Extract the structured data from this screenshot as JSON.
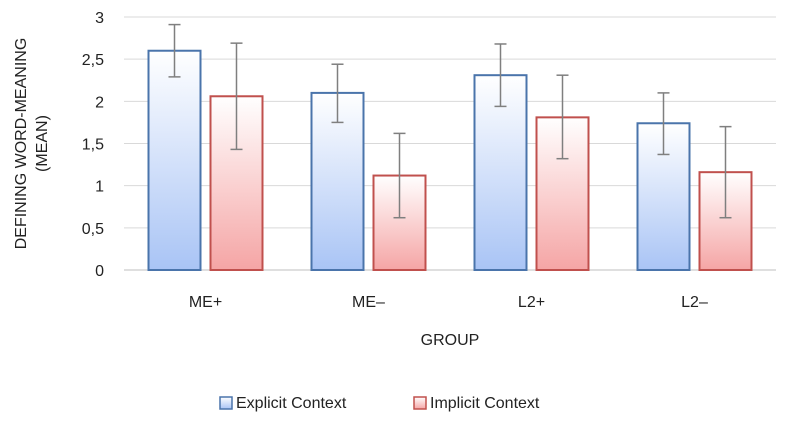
{
  "chart_data": {
    "type": "bar",
    "categories": [
      "ME+",
      "ME–",
      "L2+",
      "L2–"
    ],
    "series": [
      {
        "name": "Explicit Context",
        "values": [
          2.6,
          2.1,
          2.31,
          1.74
        ],
        "error_low": [
          2.29,
          1.75,
          1.94,
          1.37
        ],
        "error_high": [
          2.91,
          2.44,
          2.68,
          2.1
        ],
        "color_top": "#ffffff",
        "color_bottom": "#a9c4f5",
        "stroke": "#4a74ab"
      },
      {
        "name": "Implicit Context",
        "values": [
          2.06,
          1.12,
          1.81,
          1.16
        ],
        "error_low": [
          1.43,
          0.62,
          1.32,
          0.62
        ],
        "error_high": [
          2.69,
          1.62,
          2.31,
          1.7
        ],
        "color_top": "#ffffff",
        "color_bottom": "#f5a5a5",
        "stroke": "#c0504d"
      }
    ],
    "ylim": [
      0,
      3
    ],
    "yticks": [
      0,
      0.5,
      1,
      1.5,
      2,
      2.5,
      3
    ],
    "ytick_labels": [
      "0",
      "0,5",
      "1",
      "1,5",
      "2",
      "2,5",
      "3"
    ],
    "xlabel": "GROUP",
    "ylabel_lines": [
      "DEFINING WORD-MEANING",
      "(MEAN)"
    ],
    "grid": true,
    "legend_position": "bottom"
  }
}
